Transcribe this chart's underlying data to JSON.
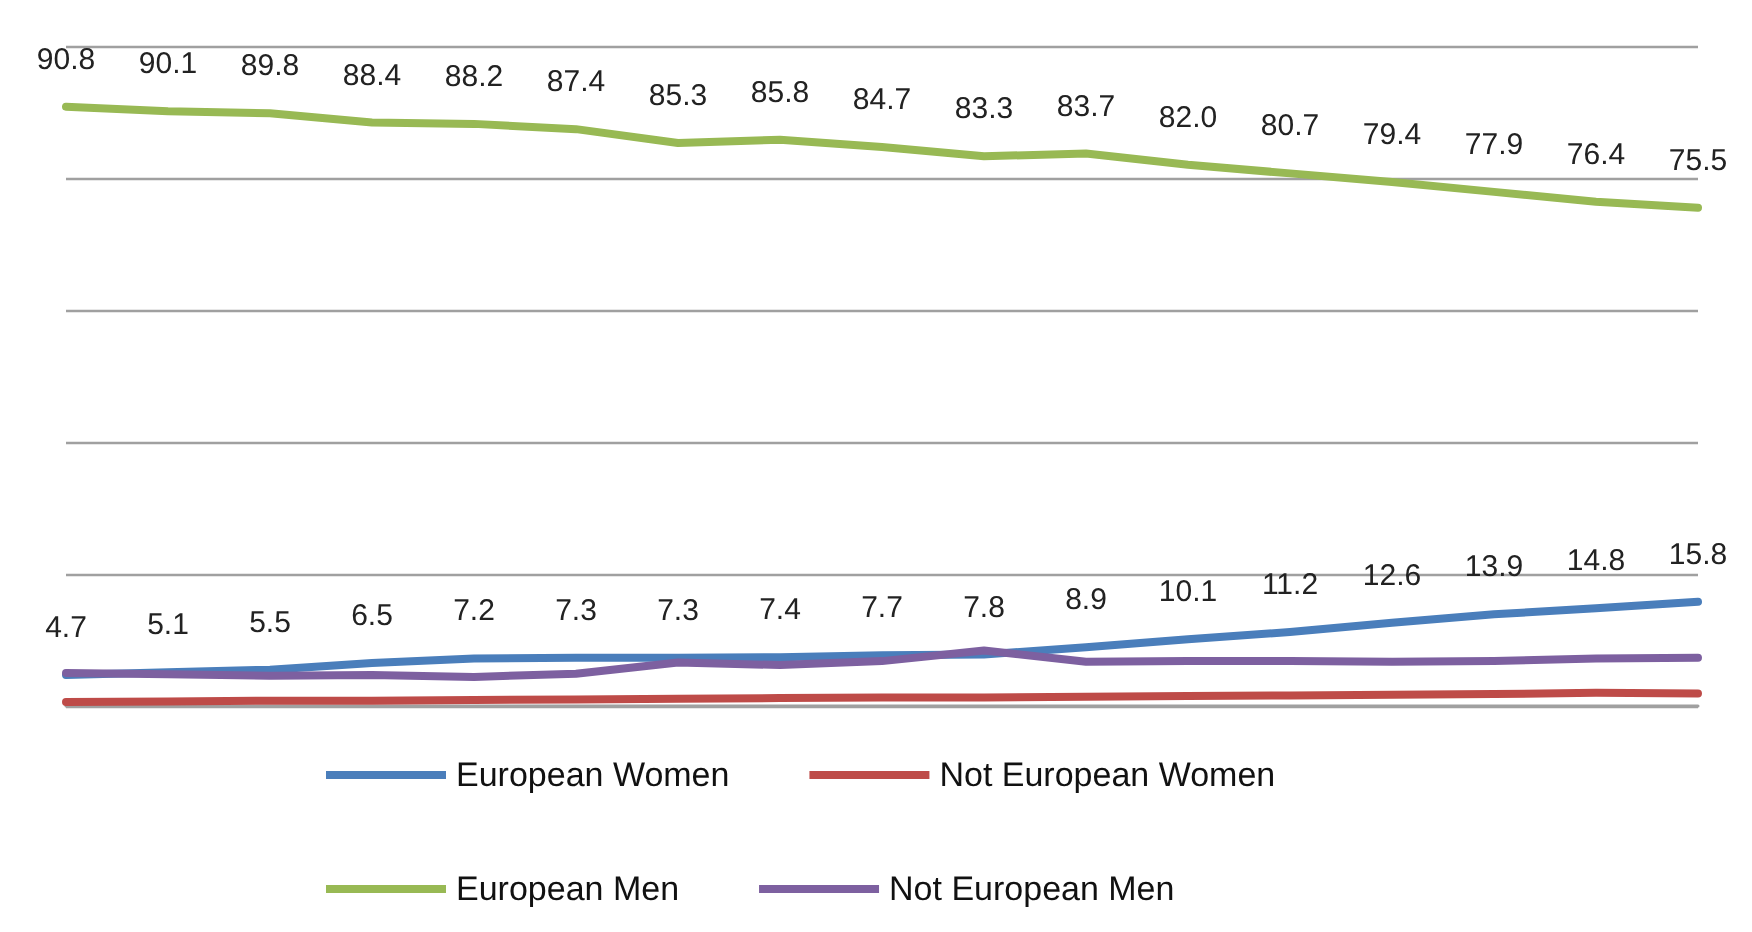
{
  "chart_data": {
    "type": "line",
    "categories": [
      null,
      null,
      null,
      null,
      null,
      null,
      null,
      null,
      null,
      null,
      null,
      null,
      null,
      null,
      null,
      null,
      null
    ],
    "ylim": [
      0,
      100
    ],
    "yticks": [
      {
        "value": 0,
        "label": null
      },
      {
        "value": 20,
        "label": null
      },
      {
        "value": 40,
        "label": null
      },
      {
        "value": 60,
        "label": null
      },
      {
        "value": 80,
        "label": null
      },
      {
        "value": 100,
        "label": null
      }
    ],
    "grid": "y",
    "legend": "bottom",
    "marker": "none",
    "line_style": "solid",
    "series": [
      {
        "name": "European Women",
        "color": "#4a7ebb",
        "values": [
          4.7,
          5.1,
          5.5,
          6.5,
          7.2,
          7.3,
          7.3,
          7.4,
          7.7,
          7.8,
          8.9,
          10.1,
          11.2,
          12.6,
          13.9,
          14.8,
          15.8
        ],
        "value_labels": [
          "4.7",
          "5.1",
          "5.5",
          "6.5",
          "7.2",
          "7.3",
          "7.3",
          "7.4",
          "7.7",
          "7.8",
          "8.9",
          "10.1",
          "11.2",
          "12.6",
          "13.9",
          "14.8",
          "15.8"
        ]
      },
      {
        "name": "Not European Women",
        "color": "#be4b48",
        "values": [
          0.6,
          0.7,
          0.8,
          0.8,
          0.9,
          1.0,
          1.1,
          1.2,
          1.3,
          1.3,
          1.4,
          1.5,
          1.6,
          1.7,
          1.8,
          2.0,
          1.9
        ]
      },
      {
        "name": "European Men",
        "color": "#98b954",
        "values": [
          90.8,
          90.1,
          89.8,
          88.4,
          88.2,
          87.4,
          85.3,
          85.8,
          84.7,
          83.3,
          83.7,
          82.0,
          80.7,
          79.4,
          77.9,
          76.4,
          75.5
        ],
        "value_labels": [
          "90.8",
          "90.1",
          "89.8",
          "88.4",
          "88.2",
          "87.4",
          "85.3",
          "85.8",
          "84.7",
          "83.3",
          "83.7",
          "82.0",
          "80.7",
          "79.4",
          "77.9",
          "76.4",
          "75.5"
        ]
      },
      {
        "name": "Not European Men",
        "color": "#7d60a0",
        "values": [
          5.0,
          4.8,
          4.6,
          4.7,
          4.4,
          4.9,
          6.6,
          6.2,
          6.8,
          8.4,
          6.7,
          6.8,
          6.8,
          6.7,
          6.8,
          7.2,
          7.3
        ]
      }
    ]
  }
}
